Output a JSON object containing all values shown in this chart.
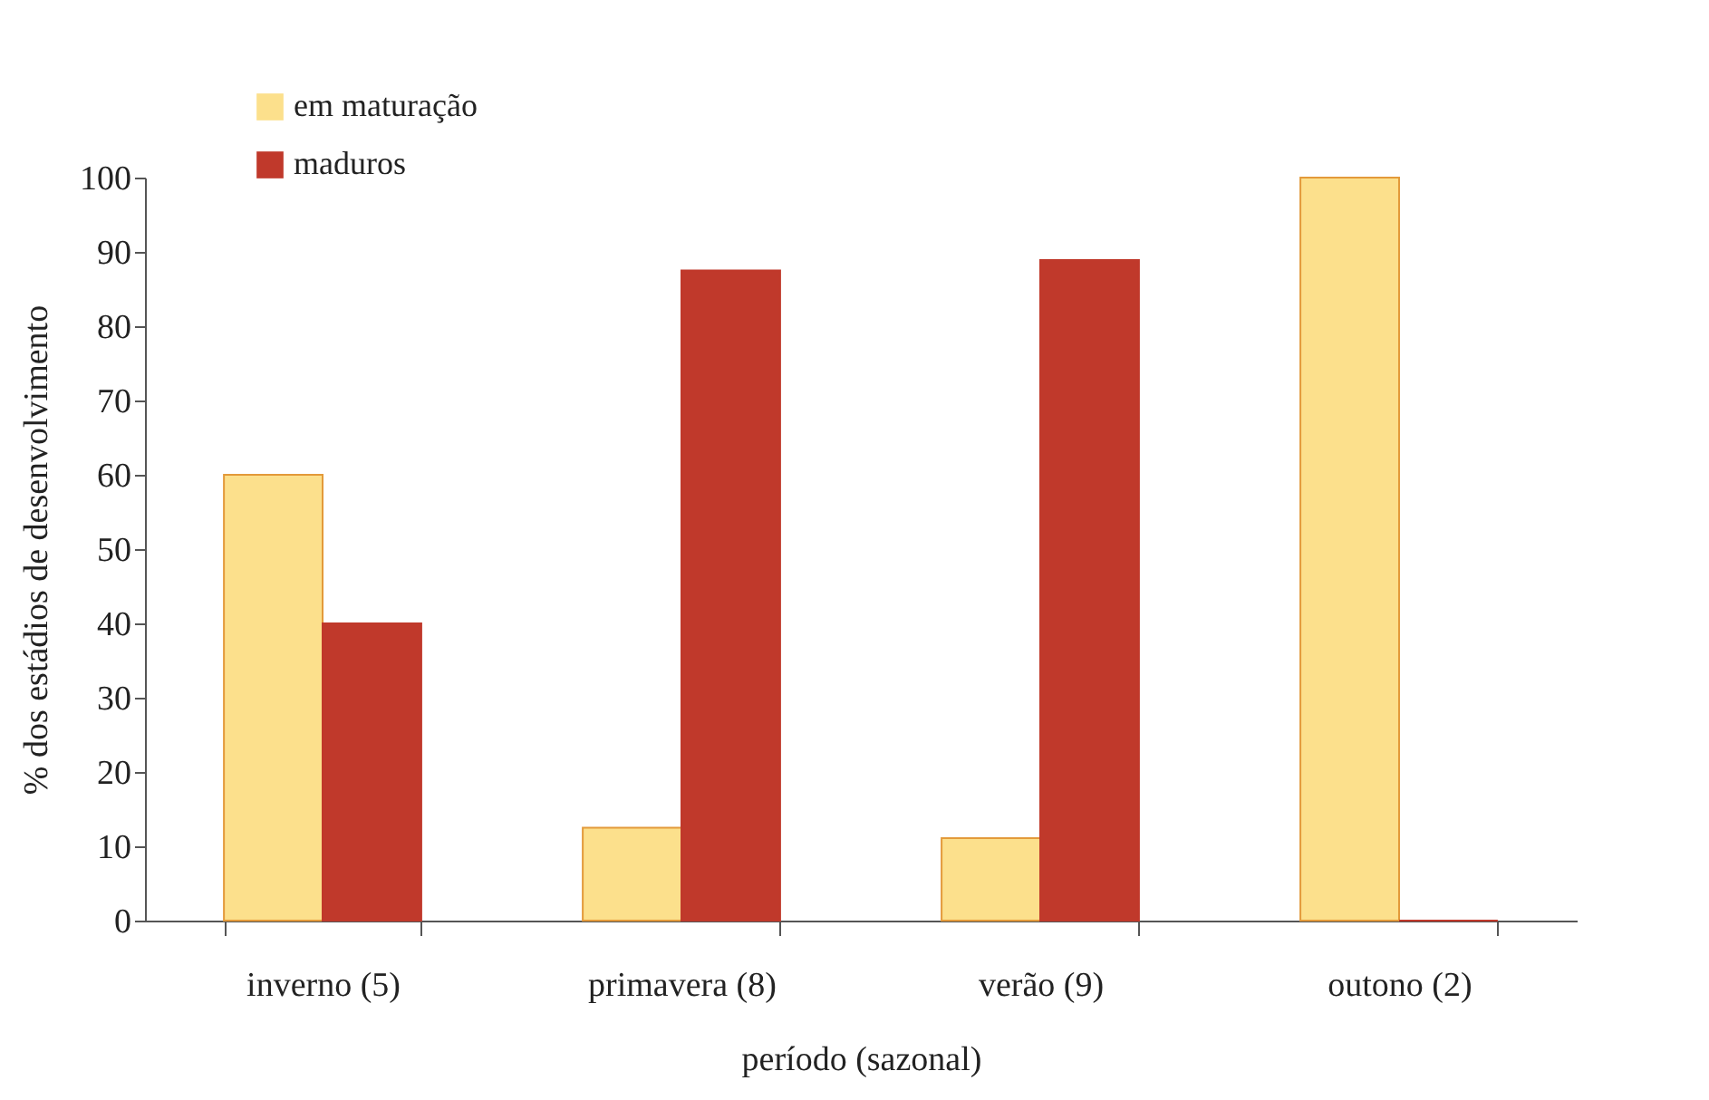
{
  "chart_data": {
    "type": "bar",
    "xlabel": "período (sazonal)",
    "ylabel": "% dos estádios de desenvolvimento",
    "categories": [
      "inverno (5)",
      "primavera (8)",
      "verão (9)",
      "outono (2)"
    ],
    "series": [
      {
        "name": "em maturação",
        "color": "#fce08c",
        "values": [
          60,
          12.5,
          11.1,
          100
        ]
      },
      {
        "name": "maduros",
        "color": "#c0392b",
        "values": [
          40,
          87.5,
          88.9,
          0
        ]
      }
    ],
    "ylim": [
      0,
      100
    ],
    "yticks": [
      0,
      10,
      20,
      30,
      40,
      50,
      60,
      70,
      80,
      90,
      100
    ],
    "grid": false,
    "legend": "top left"
  }
}
